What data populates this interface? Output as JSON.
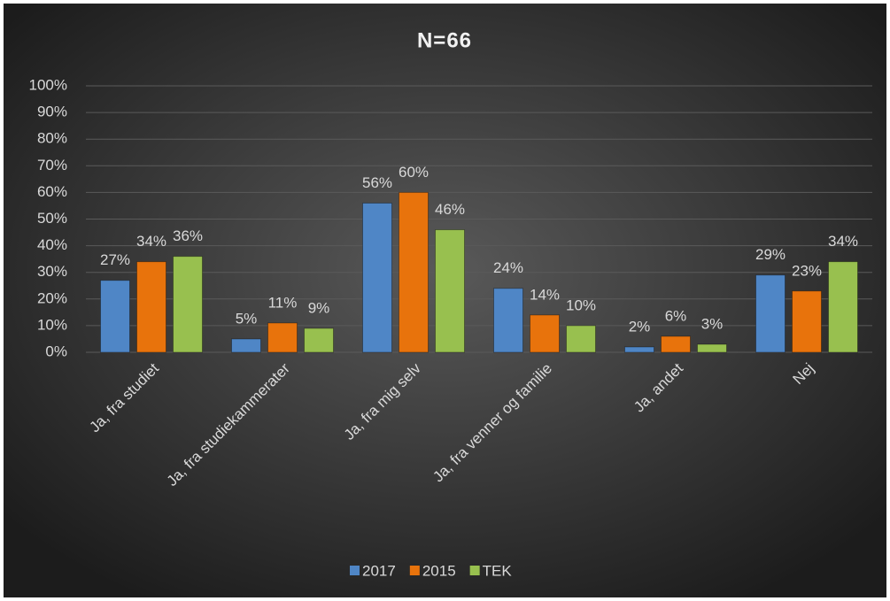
{
  "chart_data": {
    "type": "bar",
    "title": "N=66",
    "categories": [
      "Ja, fra studiet",
      "Ja, fra studiekammerater",
      "Ja, fra mig selv",
      "Ja, fra venner og familie",
      "Ja, andet",
      "Nej"
    ],
    "series": [
      {
        "name": "2017",
        "color": "#4f86c6",
        "values": [
          27,
          5,
          56,
          24,
          2,
          29
        ],
        "value_labels": [
          "27%",
          "5%",
          "56%",
          "24%",
          "2%",
          "29%"
        ]
      },
      {
        "name": "2015",
        "color": "#e8730c",
        "values": [
          34,
          11,
          60,
          14,
          6,
          23
        ],
        "value_labels": [
          "34%",
          "11%",
          "60%",
          "14%",
          "6%",
          "23%"
        ]
      },
      {
        "name": "TEK",
        "color": "#98c04f",
        "values": [
          36,
          9,
          46,
          10,
          3,
          34
        ],
        "value_labels": [
          "36%",
          "9%",
          "46%",
          "10%",
          "3%",
          "34%"
        ]
      }
    ],
    "ylim": [
      0,
      100
    ],
    "yticks": [
      {
        "value": 0,
        "label": "0%"
      },
      {
        "value": 10,
        "label": "10%"
      },
      {
        "value": 20,
        "label": "20%"
      },
      {
        "value": 30,
        "label": "30%"
      },
      {
        "value": 40,
        "label": "40%"
      },
      {
        "value": 50,
        "label": "50%"
      },
      {
        "value": 60,
        "label": "60%"
      },
      {
        "value": 70,
        "label": "70%"
      },
      {
        "value": 80,
        "label": "80%"
      },
      {
        "value": 90,
        "label": "90%"
      },
      {
        "value": 100,
        "label": "100%"
      }
    ],
    "grid": true,
    "legend": "bottom"
  }
}
